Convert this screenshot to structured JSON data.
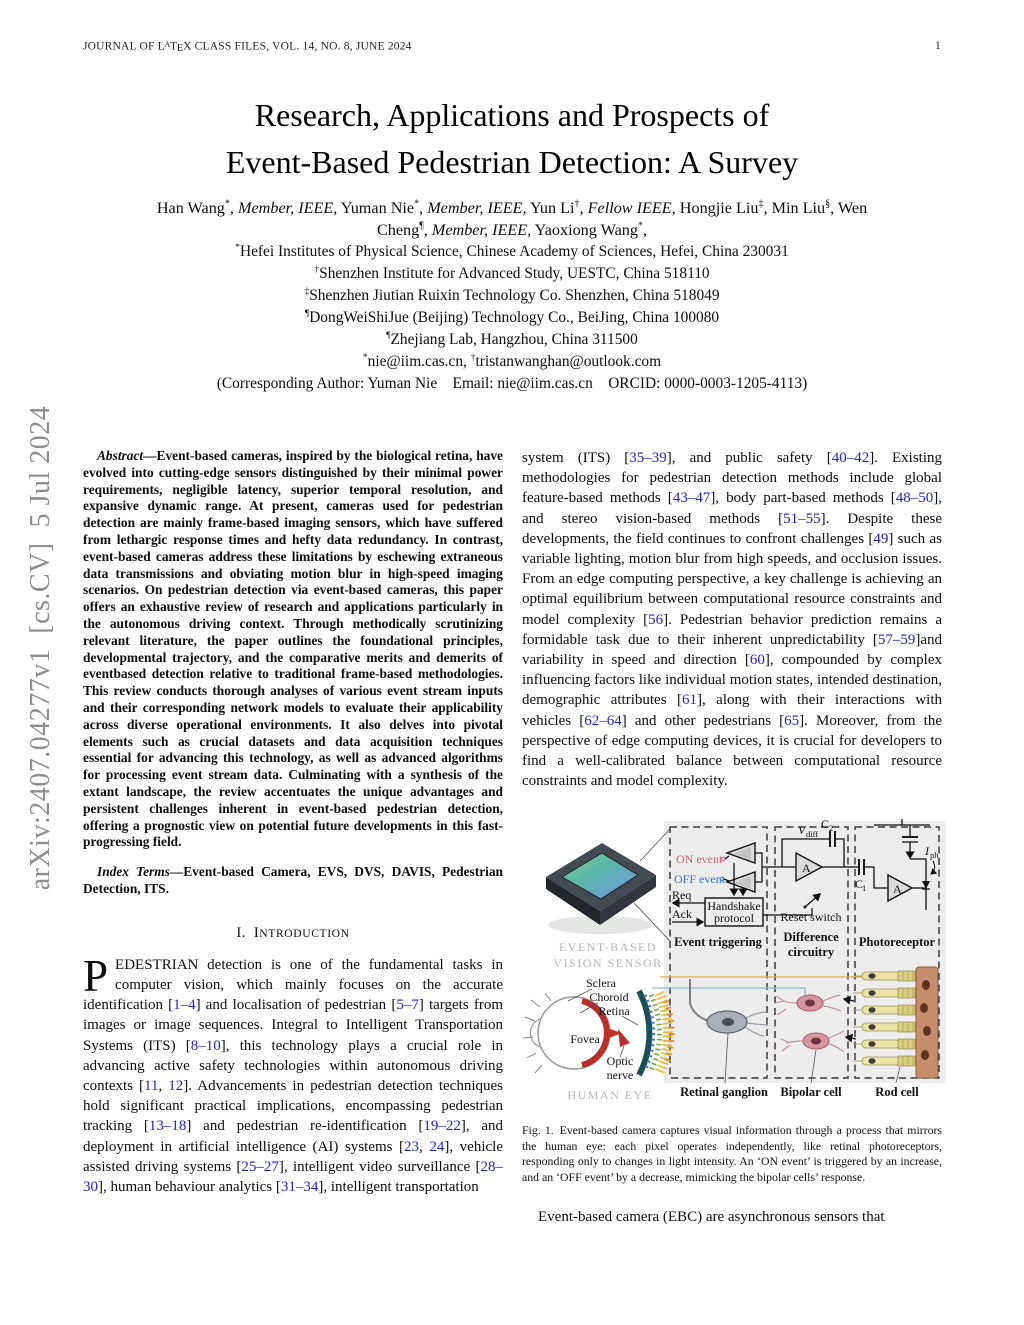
{
  "colors": {
    "cite": "#2323cf",
    "on_event": "#cf5f6e",
    "off_event": "#3a6fd0",
    "watermark": "#8e8e8e",
    "fig_gray": "#b5b5b5"
  },
  "header": {
    "journal_segs": [
      {
        "t": "JOURNAL OF L"
      },
      {
        "t": "A",
        "cls": "lxA"
      },
      {
        "t": "T"
      },
      {
        "t": "E",
        "cls": "lxE"
      },
      {
        "t": "X CLASS FILES, VOL. 14, NO. 8, JUNE 2024"
      }
    ],
    "page_number": "1"
  },
  "watermark": "arXiv:2407.04277v1  [cs.CV]  5 Jul 2024",
  "title": {
    "line1": "Research, Applications and Prospects of",
    "line2": "Event-Based Pedestrian Detection: A Survey"
  },
  "authors": {
    "line1_segs": [
      {
        "t": "Han Wang"
      },
      {
        "t": "*",
        "cls": "sup"
      },
      {
        "t": ", "
      },
      {
        "t": "Member, IEEE,",
        "cls": "it"
      },
      {
        "t": " Yuman Nie"
      },
      {
        "t": "*",
        "cls": "sup"
      },
      {
        "t": ", "
      },
      {
        "t": "Member, IEEE,",
        "cls": "it"
      },
      {
        "t": " Yun Li"
      },
      {
        "t": "†",
        "cls": "sup"
      },
      {
        "t": ", "
      },
      {
        "t": "Fellow IEEE,",
        "cls": "it"
      },
      {
        "t": " Hongjie Liu"
      },
      {
        "t": "‡",
        "cls": "sup"
      },
      {
        "t": ", Min Liu"
      },
      {
        "t": "§",
        "cls": "sup"
      },
      {
        "t": ", Wen"
      }
    ],
    "line2_segs": [
      {
        "t": "Cheng"
      },
      {
        "t": "¶",
        "cls": "sup"
      },
      {
        "t": ", "
      },
      {
        "t": "Member, IEEE,",
        "cls": "it"
      },
      {
        "t": " Yaoxiong Wang"
      },
      {
        "t": "*",
        "cls": "sup"
      },
      {
        "t": ","
      }
    ]
  },
  "affiliations": [
    {
      "segs": [
        {
          "t": "*",
          "cls": "sup"
        },
        {
          "t": "Hefei Institutes of Physical Science, Chinese Academy of Sciences, Hefei, China 230031"
        }
      ]
    },
    {
      "segs": [
        {
          "t": "†",
          "cls": "sup"
        },
        {
          "t": "Shenzhen Institute for Advanced Study, UESTC, China 518110"
        }
      ]
    },
    {
      "segs": [
        {
          "t": "‡",
          "cls": "sup"
        },
        {
          "t": "Shenzhen Jiutian Ruixin Technology Co. Shenzhen, China 518049"
        }
      ]
    },
    {
      "segs": [
        {
          "t": "¶",
          "cls": "sup"
        },
        {
          "t": "DongWeiShiJue (Beijing) Technology Co., BeiJing, China 100080"
        }
      ]
    },
    {
      "segs": [
        {
          "t": "¶",
          "cls": "sup"
        },
        {
          "t": "Zhejiang Lab, Hangzhou, China 311500"
        }
      ]
    },
    {
      "segs": [
        {
          "t": "*",
          "cls": "sup"
        },
        {
          "t": "nie@iim.cas.cn, "
        },
        {
          "t": "†",
          "cls": "sup"
        },
        {
          "t": "tristanwanghan@outlook.com"
        }
      ]
    },
    {
      "segs": [
        {
          "t": "(Corresponding Author: Yuman Nie    Email: nie@iim.cas.cn    ORCID: 0000-0003-1205-4113)"
        }
      ]
    }
  ],
  "abstract": {
    "label": "Abstract",
    "body": "—Event-based cameras, inspired by the biological retina, have evolved into cutting-edge sensors distinguished by their minimal power requirements, negligible latency, superior temporal resolution, and expansive dynamic range. At present, cameras used for pedestrian detection are mainly frame-based imaging sensors, which have suffered from lethargic response times and hefty data redundancy. In contrast, event-based cameras address these limitations by eschewing extraneous data transmissions and obviating motion blur in high-speed imaging scenarios. On pedestrian detection via event-based cameras, this paper offers an exhaustive review of research and applications particularly in the autonomous driving context. Through methodically scrutinizing relevant literature, the paper outlines the foundational principles, developmental trajectory, and the comparative merits and demerits of eventbased detection relative to traditional frame-based methodologies. This review conducts thorough analyses of various event stream inputs and their corresponding network models to evaluate their applicability across diverse operational environments. It also delves into pivotal elements such as crucial datasets and data acquisition techniques essential for advancing this technology, as well as advanced algorithms for processing event stream data. Culminating with a synthesis of the extant landscape, the review accentuates the unique advantages and persistent challenges inherent in event-based pedestrian detection, offering a prognostic view on potential future developments in this fast-progressing field."
  },
  "index_terms": {
    "label": "Index Terms",
    "body": "—Event-based Camera, EVS, DVS, DAVIS, Pedestrian Detection, ITS."
  },
  "intro_heading_segs": [
    {
      "t": "I. I"
    },
    {
      "t": "NTRODUCTION",
      "cls": "sc"
    }
  ],
  "intro": {
    "dropcap": "P",
    "p1_segs": [
      {
        "t": "EDESTRIAN detection is one of the fundamental tasks in computer vision, which mainly focuses on the accurate identification ["
      },
      {
        "t": "1–4",
        "cls": "cite"
      },
      {
        "t": "] and localisation of pedestrian ["
      },
      {
        "t": "5–7",
        "cls": "cite"
      },
      {
        "t": "] targets from images or image sequences. Integral to Intelligent Transportation Systems (ITS) ["
      },
      {
        "t": "8–10",
        "cls": "cite"
      },
      {
        "t": "], this technology plays a crucial role in advancing active safety technologies within autonomous driving contexts ["
      },
      {
        "t": "11",
        "cls": "cite"
      },
      {
        "t": ", "
      },
      {
        "t": "12",
        "cls": "cite"
      },
      {
        "t": "]. Advancements in pedestrian detection techniques hold significant practical implications, encompassing pedestrian tracking ["
      },
      {
        "t": "13–18",
        "cls": "cite"
      },
      {
        "t": "] and pedestrian re-identification ["
      },
      {
        "t": "19–22",
        "cls": "cite"
      },
      {
        "t": "], and deployment in artificial intelligence (AI) systems ["
      },
      {
        "t": "23",
        "cls": "cite"
      },
      {
        "t": ", "
      },
      {
        "t": "24",
        "cls": "cite"
      },
      {
        "t": "], vehicle assisted driving systems ["
      },
      {
        "t": "25–27",
        "cls": "cite"
      },
      {
        "t": "], intelligent video surveillance ["
      },
      {
        "t": "28–30",
        "cls": "cite"
      },
      {
        "t": "], human behaviour analytics ["
      },
      {
        "t": "31–34",
        "cls": "cite"
      },
      {
        "t": "], intelligent transportation"
      }
    ]
  },
  "col2": {
    "p1_segs": [
      {
        "t": "system (ITS) ["
      },
      {
        "t": "35–39",
        "cls": "cite"
      },
      {
        "t": "], and public safety ["
      },
      {
        "t": "40–42",
        "cls": "cite"
      },
      {
        "t": "]. Existing methodologies for pedestrian detection methods include global feature-based methods ["
      },
      {
        "t": "43–47",
        "cls": "cite"
      },
      {
        "t": "], body part-based methods ["
      },
      {
        "t": "48–50",
        "cls": "cite"
      },
      {
        "t": "], and stereo vision-based methods ["
      },
      {
        "t": "51–55",
        "cls": "cite"
      },
      {
        "t": "]. Despite these developments, the field continues to confront challenges ["
      },
      {
        "t": "49",
        "cls": "cite"
      },
      {
        "t": "] such as variable lighting, motion blur from high speeds, and occlusion issues. From an edge computing perspective, a key challenge is achieving an optimal equilibrium between computational resource constraints and model complexity ["
      },
      {
        "t": "56",
        "cls": "cite"
      },
      {
        "t": "]. Pedestrian behavior prediction remains a formidable task due to their inherent unpredictability ["
      },
      {
        "t": "57–59",
        "cls": "cite"
      },
      {
        "t": "]and variability in speed and direction ["
      },
      {
        "t": "60",
        "cls": "cite"
      },
      {
        "t": "], compounded by complex influencing factors like individual motion states, intended destination, demographic attributes ["
      },
      {
        "t": "61",
        "cls": "cite"
      },
      {
        "t": "], along with their interactions with vehicles ["
      },
      {
        "t": "62–64",
        "cls": "cite"
      },
      {
        "t": "] and other pedestrians ["
      },
      {
        "t": "65",
        "cls": "cite"
      },
      {
        "t": "]. Moreover, from the perspective of edge computing devices, it is crucial for developers to find a well-calibrated balance between computational resource constraints and model complexity."
      }
    ],
    "p2": "Event-based camera (EBC) are asynchronous sensors that"
  },
  "caption": {
    "text": "Fig. 1. Event-based camera captures visual information through a process that mirrors the human eye: each pixel operates independently, like retinal photoreceptors, responding only to changes in light intensity. An ‘ON event’ is triggered by an increase, and an ‘OFF event’ by a decrease, mimicking the bipolar cells’ response."
  },
  "figure": {
    "sensor1": "EVENT-BASED",
    "sensor2": "VISION SENSOR",
    "human_eye": "HUMAN EYE",
    "sclera": "Sclera",
    "choroid": "Choroid",
    "retina": "Retina",
    "fovea": "Fovea",
    "optic1": "Optic",
    "optic2": "nerve",
    "on_event": "ON event",
    "off_event": "OFF event",
    "req": "Req",
    "ack": "Ack",
    "hs1": "Handshake",
    "hs2": "protocol",
    "reset": "Reset switch",
    "v": "V",
    "vsub": "diff",
    "c2": "C",
    "c2sub": "2",
    "c1": "C",
    "c1sub": "1",
    "a2": "A",
    "a3": "A",
    "iph": "I",
    "iphsub": "ph",
    "p1": "Event triggering",
    "p2a": "Difference",
    "p2b": "circuitry",
    "p3": "Photoreceptor",
    "b1": "Retinal ganglion",
    "b2": "Bipolar cell",
    "b3": "Rod cell"
  }
}
